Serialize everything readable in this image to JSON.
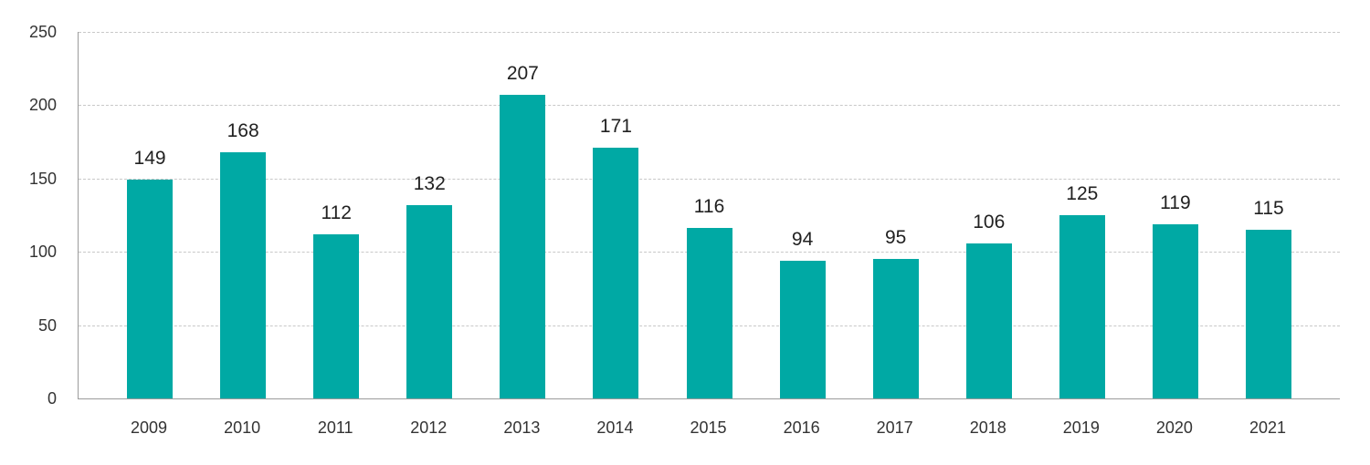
{
  "chart_data": {
    "type": "bar",
    "categories": [
      "2009",
      "2010",
      "2011",
      "2012",
      "2013",
      "2014",
      "2015",
      "2016",
      "2017",
      "2018",
      "2019",
      "2020",
      "2021"
    ],
    "values": [
      149,
      168,
      112,
      132,
      207,
      171,
      116,
      94,
      95,
      106,
      125,
      119,
      115
    ],
    "title": "",
    "xlabel": "",
    "ylabel": "",
    "ylim": [
      0,
      250
    ],
    "yticks": [
      0,
      50,
      100,
      150,
      200,
      250
    ],
    "grid": "horizontal-dashed",
    "legend": "none",
    "data_labels": true
  },
  "colors": {
    "bar": "#00a9a4",
    "axis_line": "#9b9b9b",
    "gridline": "#c8c8c8",
    "value_label_text": "#212121",
    "tick_text": "#333333",
    "background": "#ffffff"
  }
}
